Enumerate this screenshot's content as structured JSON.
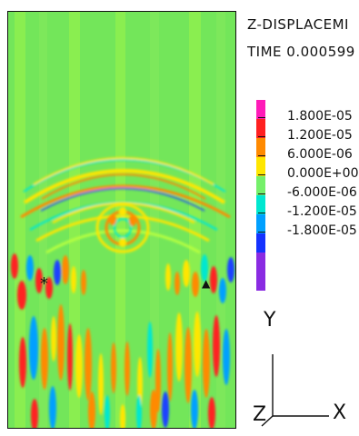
{
  "header": {
    "quantity_label": "Z-DISPLACEMI",
    "time_label": "TIME 0.000599"
  },
  "legend": {
    "colors": [
      "#ff1bb8",
      "#ff2020",
      "#ff8a00",
      "#ffe600",
      "#75f06a",
      "#00e7d0",
      "#00a0ff",
      "#1432ff",
      "#8a2be2"
    ],
    "labels": [
      "1.800E-05",
      "1.200E-05",
      "6.000E-06",
      "0.000E+00",
      "-6.000E-06",
      "-1.200E-05",
      "-1.800E-05"
    ]
  },
  "axes": {
    "y": "Y",
    "x": "X",
    "z": "Z"
  },
  "field_colors": {
    "background": "#73e65a",
    "light": "#b7ff3f",
    "yellow": "#ffe600",
    "orange": "#ff8a00",
    "red": "#ff2020",
    "cyan": "#00e7d0",
    "blue": "#1a42ff"
  },
  "markers": {
    "left_label": "*",
    "right_label": "▲"
  }
}
